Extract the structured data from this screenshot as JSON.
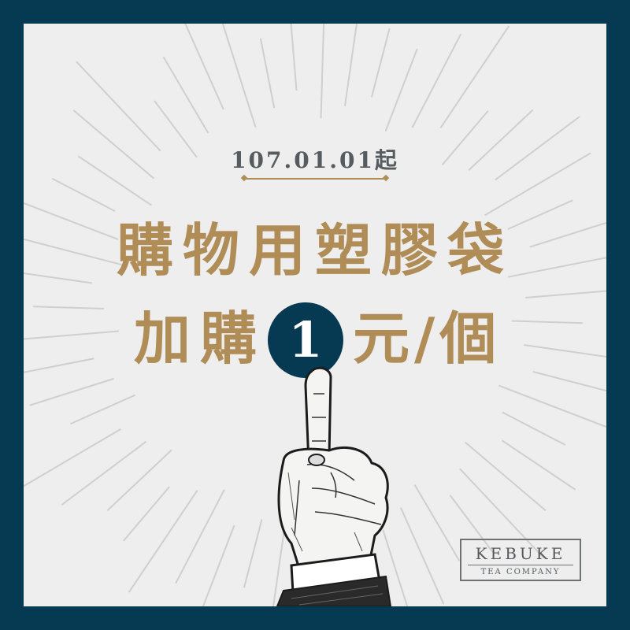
{
  "date": "107.01.01起",
  "headline_line1": "購物用塑膠袋",
  "headline_line2_prefix": "加購",
  "price": "1",
  "headline_line2_suffix": "元/個",
  "logo": {
    "brand": "KEBUKE",
    "subtitle": "TEA COMPANY"
  },
  "colors": {
    "frame": "#063a52",
    "background": "#eeeeee",
    "accent_gold": "#b08d57",
    "rays": "#cfcfcf"
  }
}
